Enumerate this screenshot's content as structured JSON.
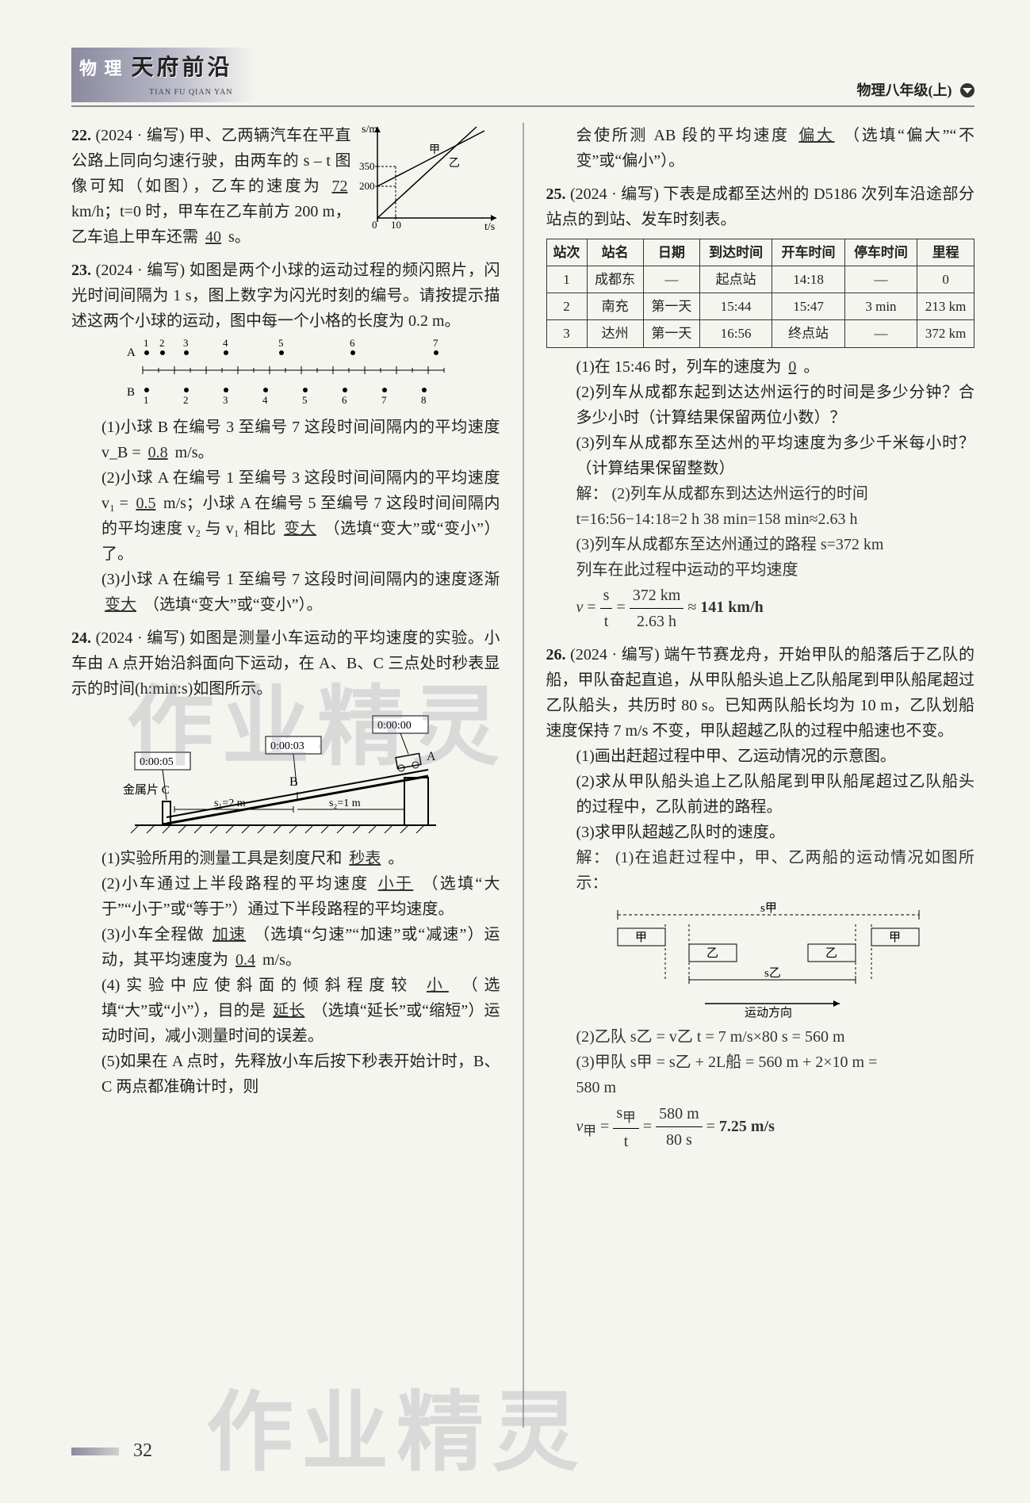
{
  "header": {
    "subject": "物 理",
    "title": "天府前沿",
    "pinyin": "TIAN FU QIAN YAN",
    "right": "物理八年级(上)"
  },
  "page_number": "32",
  "watermark": "作业精灵",
  "q22": {
    "num": "22.",
    "src": "(2024 · 编写)",
    "text1": "甲、乙两辆汽车在平直公路上同向匀速行驶，由两车的 s – t 图像可知（如图），乙车的速度为",
    "ans1": "72",
    "unit1": "km/h；t=0 时，甲车在乙车前方 200 m，乙车追上甲车还需",
    "ans2": "40",
    "unit2": "s。",
    "graph": {
      "xlabel": "t/s",
      "ylabel": "s/m",
      "y_ticks": [
        "200",
        "350"
      ],
      "x_ticks": [
        "0",
        "10"
      ],
      "line1_label": "甲",
      "line2_label": "乙"
    }
  },
  "q23": {
    "num": "23.",
    "src": "(2024 · 编写)",
    "text1": "如图是两个小球的运动过程的频闪照片，闪光时间间隔为 1 s，图上数字为闪光时刻的编号。请按提示描述这两个小球的运动，图中每一个小格的长度为 0.2 m。",
    "row_a_label": "A",
    "row_b_label": "B",
    "a_nums": [
      "1",
      "2",
      "3",
      "4",
      "5",
      "6",
      "7"
    ],
    "b_nums": [
      "1",
      "2",
      "3",
      "4",
      "5",
      "6",
      "7",
      "8"
    ],
    "p1": "(1)小球 B 在编号 3 至编号 7 这段时间间隔内的平均速度 v_B =",
    "p1_ans": "0.8",
    "p1_unit": "m/s。",
    "p2": "(2)小球 A 在编号 1 至编号 3 这段时间间隔内的平均速度 v₁ =",
    "p2_ans": "0.5",
    "p2_unit": "m/s；小球 A 在编号 5 至编号 7 这段时间间隔内的平均速度 v₂ 与 v₁ 相比",
    "p2_ans2": "变大",
    "p2_tail": "（选填“变大”或“变小”）了。",
    "p3": "(3)小球 A 在编号 1 至编号 7 这段时间间隔内的速度逐渐",
    "p3_ans": "变大",
    "p3_tail": "（选填“变大”或“变小”）。"
  },
  "q24": {
    "num": "24.",
    "src": "(2024 · 编写)",
    "text1": "如图是测量小车运动的平均速度的实验。小车由 A 点开始沿斜面向下运动，在 A、B、C 三点处时秒表显示的时间(h:min:s)如图所示。",
    "fig": {
      "tA": "0:00:00",
      "tB": "0:00:03",
      "tC": "0:00:05",
      "labelC": "金属片 C",
      "s1": "s₁=2 m",
      "s2": "s₂=1 m",
      "A": "A",
      "B": "B"
    },
    "p1": "(1)实验所用的测量工具是刻度尺和",
    "p1_ans": "秒表",
    "p1_tail": "。",
    "p2": "(2)小车通过上半段路程的平均速度",
    "p2_ans": "小于",
    "p2_tail": "（选填“大于”“小于”或“等于”）通过下半段路程的平均速度。",
    "p3": "(3)小车全程做",
    "p3_ans": "加速",
    "p3_mid": "（选填“匀速”“加速”或“减速”）运动，其平均速度为",
    "p3_ans2": "0.4",
    "p3_tail": "m/s。",
    "p4": "(4)实验中应使斜面的倾斜程度较",
    "p4_ans": "小",
    "p4_mid": "（选填“大”或“小”），目的是",
    "p4_ans2": "延长",
    "p4_tail": "（选填“延长”或“缩短”）运动时间，减小测量时间的误差。",
    "p5": "(5)如果在 A 点时，先释放小车后按下秒表开始计时，B、C 两点都准确计时，则",
    "p5_cont": "会使所测 AB 段的平均速度",
    "p5_ans": "偏大",
    "p5_tail": "（选填“偏大”“不变”或“偏小”）。"
  },
  "q25": {
    "num": "25.",
    "src": "(2024 · 编写)",
    "text1": "下表是成都至达州的 D5186 次列车沿途部分站点的到站、发车时刻表。",
    "table": {
      "headers": [
        "站次",
        "站名",
        "日期",
        "到达时间",
        "开车时间",
        "停车时间",
        "里程"
      ],
      "rows": [
        [
          "1",
          "成都东",
          "—",
          "起点站",
          "14:18",
          "—",
          "0"
        ],
        [
          "2",
          "南充",
          "第一天",
          "15:44",
          "15:47",
          "3 min",
          "213 km"
        ],
        [
          "3",
          "达州",
          "第一天",
          "16:56",
          "终点站",
          "—",
          "372 km"
        ]
      ]
    },
    "p1": "(1)在 15:46 时，列车的速度为",
    "p1_ans": "0",
    "p1_tail": "。",
    "p2": "(2)列车从成都东起到达达州运行的时间是多少分钟？合多少小时（计算结果保留两位小数）？",
    "p3": "(3)列车从成都东至达州的平均速度为多少千米每小时？（计算结果保留整数）",
    "sol_label": "解：",
    "sol2a": "(2)列车从成都东到达达州运行的时间",
    "sol2b": "t=16:56−14:18=2 h 38 min=158 min≈2.63 h",
    "sol3a": "(3)列车从成都东至达州通过的路程 s=372 km",
    "sol3b": "列车在此过程中运动的平均速度",
    "sol3c": "v = s / t = 372 km / 2.63 h ≈ 141 km/h"
  },
  "q26": {
    "num": "26.",
    "src": "(2024 · 编写)",
    "text1": "端午节赛龙舟，开始甲队的船落后于乙队的船，甲队奋起直追，从甲队船头追上乙队船尾到甲队船尾超过乙队船头，共历时 80 s。已知两队船长均为 10 m，乙队划船速度保持 7 m/s 不变，甲队超越乙队的过程中船速也不变。",
    "p1": "(1)画出赶超过程中甲、乙运动情况的示意图。",
    "p2": "(2)求从甲队船头追上乙队船尾到甲队船尾超过乙队船头的过程中，乙队前进的路程。",
    "p3": "(3)求甲队超越乙队时的速度。",
    "sol_label": "解：",
    "sol1": "(1)在追赶过程中，甲、乙两船的运动情况如图所示：",
    "diag": {
      "labels": [
        "甲",
        "乙",
        "乙",
        "甲"
      ],
      "s_jia": "s甲",
      "s_yi": "s乙",
      "dir": "运动方向"
    },
    "sol2": "(2)乙队 s乙 = v乙 t = 7 m/s×80 s = 560 m",
    "sol3a": "(3)甲队 s甲 = s乙 + 2L船 = 560 m + 2×10 m =",
    "sol3b": "580 m",
    "sol3c": "v甲 = s甲 / t = 580 m / 80 s = 7.25 m/s"
  }
}
